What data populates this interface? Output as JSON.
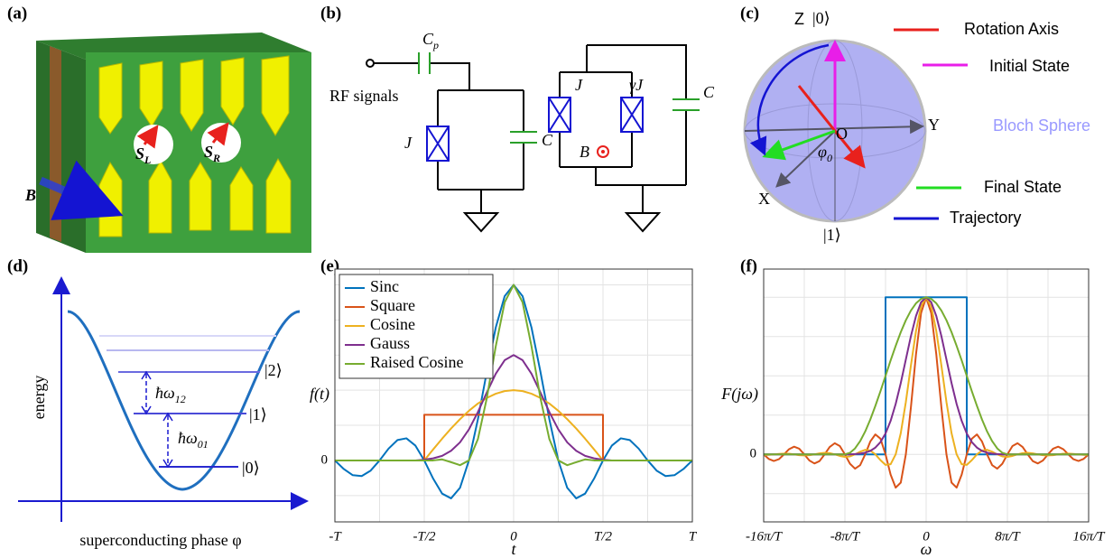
{
  "panels": {
    "a": {
      "label": "(a)",
      "field": "B",
      "spin_left": {
        "main": "S",
        "sub": "L"
      },
      "spin_right": {
        "main": "S",
        "sub": "R"
      }
    },
    "b": {
      "label": "(b)",
      "coupling_cap": {
        "main": "C",
        "sub": "p"
      },
      "input": "RF signals",
      "junction": "J",
      "capacitor": "C",
      "junction_left": "J",
      "junction_right": "γJ",
      "capacitor_right": "C",
      "field": "B"
    },
    "c": {
      "label": "(c)",
      "z_axis": "Z",
      "ket0": "|0⟩",
      "y_axis": "Y",
      "x_axis": "X",
      "ket1": "|1⟩",
      "origin": "O",
      "angle": {
        "main": "φ",
        "sub": "0"
      },
      "legend": {
        "rotation_axis": "Rotation Axis",
        "initial_state": "Initial State",
        "sphere": "Bloch Sphere",
        "final_state": "Final State",
        "trajectory": "Trajectory"
      }
    },
    "d": {
      "label": "(d)",
      "y_label": "energy",
      "x_label": "superconducting phase φ",
      "level2": "|2⟩",
      "level1": "|1⟩",
      "level0": "|0⟩",
      "gap12": {
        "main": "ħω",
        "sub": "12"
      },
      "gap01": {
        "main": "ħω",
        "sub": "01"
      }
    },
    "e": {
      "label": "(e)"
    },
    "f": {
      "label": "(f)"
    }
  },
  "chart_data": [
    {
      "type": "line",
      "x_label": "t",
      "y_label": "f(t)",
      "legend": "upper left",
      "grid": true,
      "xlim": [
        -1,
        1
      ],
      "ylim": [
        -0.35,
        1.09
      ],
      "xticks": [
        {
          "value": -1,
          "label": "-T"
        },
        {
          "value": -0.5,
          "label": "-T/2"
        },
        0,
        {
          "value": 0.5,
          "label": "T/2"
        },
        {
          "value": 1,
          "label": "T"
        }
      ],
      "xgrid": [
        -0.75,
        -0.25,
        0.25,
        0.75
      ],
      "yticks": [
        0
      ],
      "ygrid": [
        -0.2,
        0.2,
        0.4,
        0.6,
        0.8,
        1
      ],
      "x": [
        -1,
        -0.95,
        -0.9,
        -0.85,
        -0.8,
        -0.75,
        -0.7,
        -0.65,
        -0.6,
        -0.55,
        -0.5,
        -0.45,
        -0.4,
        -0.35,
        -0.3,
        -0.25,
        -0.2,
        -0.15,
        -0.1,
        -0.05,
        0,
        0.05,
        0.1,
        0.15,
        0.2,
        0.25,
        0.3,
        0.35,
        0.4,
        0.45,
        0.5,
        0.55,
        0.6,
        0.65,
        0.7,
        0.75,
        0.8,
        0.85,
        0.9,
        0.95,
        1
      ],
      "series": [
        {
          "name": "Sinc",
          "color": "#0072bd",
          "values": [
            0,
            -0.049,
            -0.084,
            -0.089,
            -0.058,
            0,
            0.067,
            0.116,
            0.126,
            0.085,
            0,
            -0.104,
            -0.189,
            -0.216,
            -0.156,
            0,
            0.234,
            0.505,
            0.757,
            0.936,
            1,
            0.936,
            0.757,
            0.505,
            0.234,
            0,
            -0.156,
            -0.216,
            -0.189,
            -0.104,
            0,
            0.085,
            0.126,
            0.116,
            0.067,
            0,
            -0.058,
            -0.089,
            -0.084,
            -0.049,
            0
          ]
        },
        {
          "name": "Square",
          "color": "#d95319",
          "x": [
            -1,
            -0.5,
            -0.5,
            0.5,
            0.5,
            1
          ],
          "values": [
            0,
            0,
            0.26,
            0.26,
            0,
            0
          ]
        },
        {
          "name": "Cosine",
          "color": "#edb120",
          "values": [
            0,
            0,
            0,
            0,
            0,
            0,
            0,
            0,
            0,
            0,
            0,
            0.063,
            0.124,
            0.182,
            0.235,
            0.283,
            0.324,
            0.356,
            0.38,
            0.395,
            0.4,
            0.395,
            0.38,
            0.356,
            0.324,
            0.283,
            0.235,
            0.182,
            0.124,
            0.063,
            0,
            0,
            0,
            0,
            0,
            0,
            0,
            0,
            0,
            0,
            0
          ]
        },
        {
          "name": "Gauss",
          "color": "#7e2f8e",
          "values": [
            0,
            0,
            0,
            0,
            0,
            0,
            0,
            0,
            0,
            0,
            0.004,
            0.012,
            0.026,
            0.055,
            0.103,
            0.177,
            0.275,
            0.387,
            0.494,
            0.571,
            0.6,
            0.571,
            0.494,
            0.387,
            0.275,
            0.177,
            0.103,
            0.055,
            0.026,
            0.012,
            0.004,
            0,
            0,
            0,
            0,
            0,
            0,
            0,
            0,
            0,
            0
          ]
        },
        {
          "name": "Raised Cosine",
          "color": "#77ac30",
          "values": [
            0,
            0,
            0,
            0,
            0,
            0,
            0,
            0,
            0,
            0,
            0,
            0,
            0.006,
            -0.01,
            -0.027,
            0,
            0.121,
            0.355,
            0.65,
            0.901,
            1,
            0.901,
            0.65,
            0.355,
            0.121,
            0,
            -0.027,
            -0.01,
            0.006,
            0,
            0,
            0,
            0,
            0,
            0,
            0,
            0,
            0,
            0,
            0,
            0
          ]
        }
      ]
    },
    {
      "type": "line",
      "x_label": "ω",
      "y_label": "F(jω)",
      "grid": true,
      "xlim": [
        -16,
        16
      ],
      "ylim": [
        -0.43,
        1.18
      ],
      "xticks": [
        {
          "value": -16,
          "label": "-16π/T"
        },
        {
          "value": -8,
          "label": "-8π/T"
        },
        0,
        {
          "value": 8,
          "label": "8π/T"
        },
        {
          "value": 16,
          "label": "16π/T"
        }
      ],
      "xgrid": [
        -12,
        -4,
        4,
        12
      ],
      "yticks": [
        0
      ],
      "ygrid": [
        -0.25,
        0.25,
        0.5,
        0.75,
        1
      ],
      "x": [
        -16,
        -15.5,
        -15,
        -14.5,
        -14,
        -13.5,
        -13,
        -12.5,
        -12,
        -11.5,
        -11,
        -10.5,
        -10,
        -9.5,
        -9,
        -8.5,
        -8,
        -7.5,
        -7,
        -6.5,
        -6,
        -5.5,
        -5,
        -4.5,
        -4,
        -3.5,
        -3,
        -2.5,
        -2,
        -1.5,
        -1,
        -0.5,
        0,
        0.5,
        1,
        1.5,
        2,
        2.5,
        3,
        3.5,
        4,
        4.5,
        5,
        5.5,
        6,
        6.5,
        7,
        7.5,
        8,
        8.5,
        9,
        9.5,
        10,
        10.5,
        11,
        11.5,
        12,
        12.5,
        13,
        13.5,
        14,
        14.5,
        15,
        15.5,
        16
      ],
      "series": [
        {
          "color": "#0072bd",
          "x": [
            -16,
            -4,
            -4,
            4,
            4,
            16
          ],
          "values": [
            0,
            0,
            1,
            1,
            0,
            0
          ]
        },
        {
          "color": "#d95319",
          "values": [
            0,
            -0.029,
            -0.042,
            -0.031,
            0,
            0.033,
            0.049,
            0.036,
            0,
            -0.039,
            -0.058,
            -0.043,
            0,
            0.047,
            0.071,
            0.053,
            0,
            -0.06,
            -0.091,
            -0.069,
            0,
            0.082,
            0.127,
            0.1,
            0,
            -0.129,
            -0.212,
            -0.18,
            0,
            0.3,
            0.637,
            0.9,
            1,
            0.9,
            0.637,
            0.3,
            0,
            -0.18,
            -0.212,
            -0.129,
            0,
            0.1,
            0.127,
            0.082,
            0,
            -0.069,
            -0.091,
            -0.06,
            0,
            0.053,
            0.071,
            0.047,
            0,
            -0.043,
            -0.058,
            -0.039,
            0,
            0.036,
            0.049,
            0.033,
            0,
            -0.031,
            -0.042,
            -0.029,
            0
          ]
        },
        {
          "color": "#edb120",
          "values": [
            -0.004,
            -0.003,
            0,
            0.003,
            0.005,
            0.004,
            0,
            -0.005,
            -0.007,
            -0.005,
            0,
            0.006,
            0.01,
            0.008,
            0,
            -0.01,
            -0.016,
            -0.013,
            0,
            0.017,
            0.029,
            0.024,
            0,
            -0.037,
            -0.067,
            -0.063,
            0,
            0.135,
            0.333,
            0.566,
            0.785,
            0.943,
            1,
            0.943,
            0.785,
            0.566,
            0.333,
            0.135,
            0,
            -0.063,
            -0.067,
            -0.037,
            0,
            0.024,
            0.029,
            0.017,
            0,
            -0.013,
            -0.016,
            -0.01,
            0,
            0.008,
            0.01,
            0.006,
            0,
            -0.005,
            -0.007,
            -0.005,
            0,
            0.004,
            0.005,
            0.003,
            0,
            -0.003,
            -0.004
          ]
        },
        {
          "color": "#7e2f8e",
          "values": [
            0,
            0,
            0,
            0,
            0,
            0,
            0,
            0,
            0,
            0,
            0,
            0,
            0,
            0,
            0,
            0,
            0,
            0,
            0.002,
            0.005,
            0.011,
            0.022,
            0.043,
            0.078,
            0.133,
            0.213,
            0.321,
            0.454,
            0.604,
            0.753,
            0.881,
            0.969,
            1,
            0.969,
            0.881,
            0.753,
            0.604,
            0.454,
            0.321,
            0.213,
            0.133,
            0.078,
            0.043,
            0.022,
            0.011,
            0.005,
            0.002,
            0,
            0,
            0,
            0,
            0,
            0,
            0,
            0,
            0,
            0,
            0,
            0,
            0,
            0,
            0,
            0,
            0,
            0
          ]
        },
        {
          "color": "#77ac30",
          "values": [
            0,
            0,
            0,
            0,
            0,
            0,
            0,
            0,
            0,
            0,
            0,
            0,
            0,
            0,
            0,
            0,
            0,
            0.01,
            0.038,
            0.084,
            0.146,
            0.222,
            0.309,
            0.402,
            0.5,
            0.598,
            0.691,
            0.778,
            0.854,
            0.916,
            0.962,
            0.99,
            1,
            0.99,
            0.962,
            0.916,
            0.854,
            0.778,
            0.691,
            0.598,
            0.5,
            0.402,
            0.309,
            0.222,
            0.146,
            0.084,
            0.038,
            0.01,
            0,
            0,
            0,
            0,
            0,
            0,
            0,
            0,
            0,
            0,
            0,
            0,
            0,
            0,
            0,
            0,
            0
          ]
        }
      ]
    }
  ]
}
